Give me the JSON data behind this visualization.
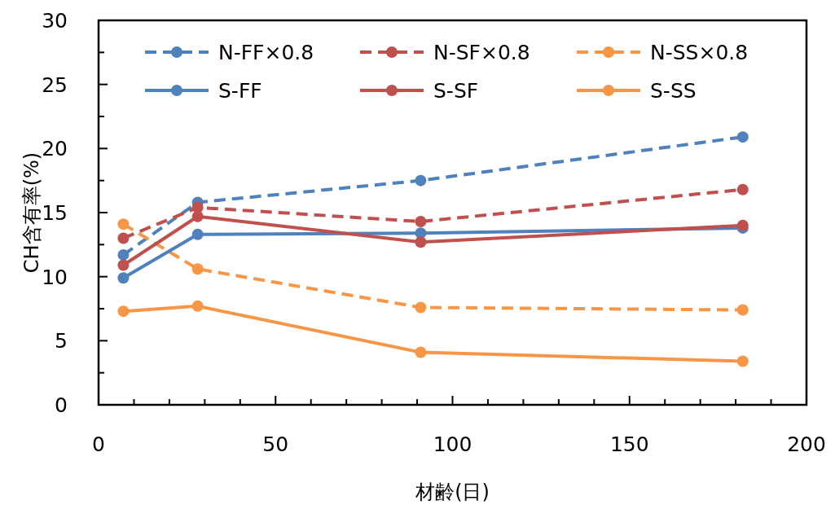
{
  "chart_data": {
    "type": "line",
    "xlabel": "材齢(日)",
    "ylabel": "CH含有率(%)",
    "xlim": [
      0,
      200
    ],
    "ylim": [
      0,
      30
    ],
    "xticks": [
      0,
      {
        "value": 10,
        "label": null
      },
      {
        "value": 20,
        "label": null
      },
      {
        "value": 30,
        "label": null
      },
      {
        "value": 40,
        "label": null
      },
      50,
      {
        "value": 60,
        "label": null
      },
      {
        "value": 70,
        "label": null
      },
      {
        "value": 80,
        "label": null
      },
      {
        "value": 90,
        "label": null
      },
      100,
      {
        "value": 110,
        "label": null
      },
      {
        "value": 120,
        "label": null
      },
      {
        "value": 130,
        "label": null
      },
      {
        "value": 140,
        "label": null
      },
      150,
      {
        "value": 160,
        "label": null
      },
      {
        "value": 170,
        "label": null
      },
      {
        "value": 180,
        "label": null
      },
      {
        "value": 190,
        "label": null
      },
      200
    ],
    "yticks": [
      0,
      {
        "value": 2.5,
        "label": null
      },
      5,
      {
        "value": 7.5,
        "label": null
      },
      10,
      {
        "value": 12.5,
        "label": null
      },
      15,
      {
        "value": 17.5,
        "label": null
      },
      20,
      {
        "value": 22.5,
        "label": null
      },
      25,
      {
        "value": 27.5,
        "label": null
      },
      30
    ],
    "marker": "circle",
    "legend": "top",
    "x": [
      7,
      28,
      91,
      182
    ],
    "series": [
      {
        "name": "N-FF×0.8",
        "color": "#4f81bd",
        "line_style": "dashed",
        "values": [
          11.7,
          15.8,
          17.5,
          20.9
        ]
      },
      {
        "name": "N-SF×0.8",
        "color": "#c0504d",
        "line_style": "dashed",
        "values": [
          13.0,
          15.4,
          14.3,
          16.8
        ]
      },
      {
        "name": "N-SS×0.8",
        "color": "#f79646",
        "line_style": "dashed",
        "values": [
          14.1,
          10.6,
          7.6,
          7.4
        ]
      },
      {
        "name": "S-FF",
        "color": "#4f81bd",
        "line_style": "solid",
        "values": [
          9.9,
          13.3,
          13.4,
          13.8
        ]
      },
      {
        "name": "S-SF",
        "color": "#c0504d",
        "line_style": "solid",
        "values": [
          10.9,
          14.7,
          12.7,
          14.0
        ]
      },
      {
        "name": "S-SS",
        "color": "#f79646",
        "line_style": "solid",
        "values": [
          7.3,
          7.7,
          4.1,
          3.4
        ]
      }
    ]
  }
}
